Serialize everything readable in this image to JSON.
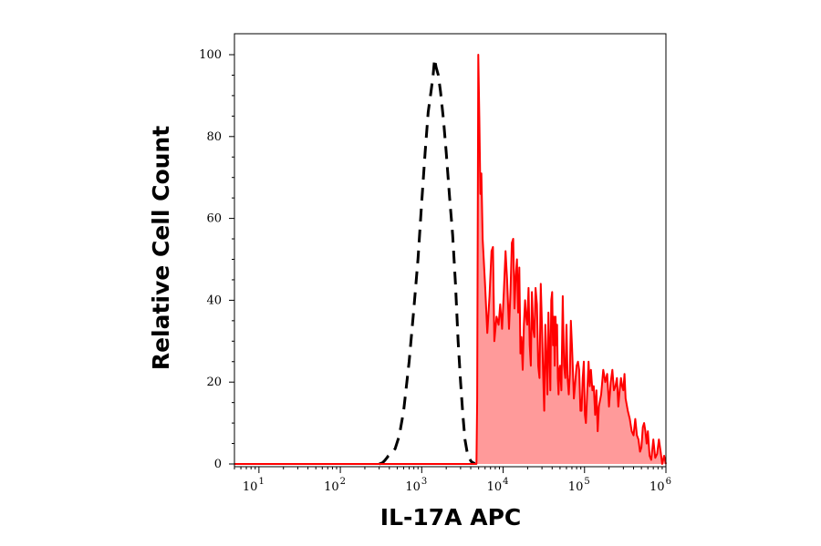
{
  "chart_data": {
    "type": "area",
    "xlabel": "IL-17A APC",
    "ylabel": "Relative Cell Count",
    "x_scale": "log",
    "xlim": [
      5,
      1000000
    ],
    "ylim": [
      0,
      100
    ],
    "x_ticks": [
      {
        "value": 10,
        "base": "10",
        "exp": "1"
      },
      {
        "value": 100,
        "base": "10",
        "exp": "2"
      },
      {
        "value": 1000,
        "base": "10",
        "exp": "3"
      },
      {
        "value": 10000,
        "base": "10",
        "exp": "4"
      },
      {
        "value": 100000,
        "base": "10",
        "exp": "5"
      },
      {
        "value": 1000000,
        "base": "10",
        "exp": "6"
      }
    ],
    "y_ticks": [
      0,
      20,
      40,
      60,
      80,
      100
    ],
    "series": [
      {
        "style": "dashed",
        "color": "#000000",
        "points": [
          [
            300,
            0
          ],
          [
            330,
            0.3
          ],
          [
            350,
            0.8
          ],
          [
            370,
            1.4
          ],
          [
            390,
            2.0
          ],
          [
            420,
            2.5
          ],
          [
            470,
            3.7
          ],
          [
            530,
            6.9
          ],
          [
            600,
            13.0
          ],
          [
            700,
            25.0
          ],
          [
            800,
            38.0
          ],
          [
            900,
            50.0
          ],
          [
            1000,
            64.0
          ],
          [
            1100,
            76.0
          ],
          [
            1200,
            86.0
          ],
          [
            1300,
            91.0
          ],
          [
            1380,
            95.0
          ],
          [
            1440,
            99.0
          ],
          [
            1500,
            97.0
          ],
          [
            1600,
            95.0
          ],
          [
            1700,
            91.0
          ],
          [
            1850,
            84.0
          ],
          [
            2000,
            76.0
          ],
          [
            2200,
            65.0
          ],
          [
            2400,
            56.0
          ],
          [
            2600,
            44.0
          ],
          [
            2800,
            30.0
          ],
          [
            3000,
            20.0
          ],
          [
            3200,
            12.0
          ],
          [
            3400,
            6.0
          ],
          [
            3600,
            3.0
          ],
          [
            3800,
            1.5
          ],
          [
            4100,
            0.5
          ],
          [
            4500,
            0.1
          ]
        ]
      },
      {
        "style": "filled",
        "color": "#ff0000",
        "fill": "#ff9a9a",
        "points": [
          [
            5,
            0
          ],
          [
            200,
            0
          ],
          [
            4700,
            0
          ],
          [
            4800,
            16
          ],
          [
            4950,
            100
          ],
          [
            5100,
            84
          ],
          [
            5250,
            66
          ],
          [
            5400,
            71
          ],
          [
            5600,
            55
          ],
          [
            6000,
            44
          ],
          [
            6400,
            32
          ],
          [
            6800,
            41
          ],
          [
            7200,
            52
          ],
          [
            7500,
            53
          ],
          [
            7800,
            30
          ],
          [
            8300,
            36
          ],
          [
            8800,
            34
          ],
          [
            9200,
            39
          ],
          [
            9700,
            33
          ],
          [
            10200,
            42
          ],
          [
            10700,
            52
          ],
          [
            11200,
            45
          ],
          [
            11800,
            33
          ],
          [
            12300,
            42
          ],
          [
            12800,
            54
          ],
          [
            13300,
            55
          ],
          [
            13800,
            38
          ],
          [
            14300,
            46
          ],
          [
            14800,
            50
          ],
          [
            15300,
            37
          ],
          [
            15800,
            48
          ],
          [
            16300,
            27
          ],
          [
            16800,
            31
          ],
          [
            17400,
            23
          ],
          [
            18000,
            34
          ],
          [
            18600,
            40
          ],
          [
            19200,
            36
          ],
          [
            19800,
            34
          ],
          [
            20500,
            43
          ],
          [
            21200,
            29
          ],
          [
            21900,
            24
          ],
          [
            22600,
            42
          ],
          [
            23400,
            33
          ],
          [
            24200,
            31
          ],
          [
            25000,
            43
          ],
          [
            26000,
            39
          ],
          [
            27000,
            24
          ],
          [
            28000,
            21
          ],
          [
            29000,
            44
          ],
          [
            30000,
            34
          ],
          [
            31000,
            22
          ],
          [
            32000,
            13
          ],
          [
            33000,
            34
          ],
          [
            34000,
            25
          ],
          [
            35000,
            17
          ],
          [
            36000,
            37
          ],
          [
            37000,
            28
          ],
          [
            38000,
            18
          ],
          [
            39000,
            40
          ],
          [
            40000,
            42
          ],
          [
            41000,
            29
          ],
          [
            42000,
            36
          ],
          [
            43000,
            24
          ],
          [
            44000,
            36
          ],
          [
            45000,
            29
          ],
          [
            46000,
            34
          ],
          [
            47000,
            21
          ],
          [
            48000,
            17
          ],
          [
            49000,
            23
          ],
          [
            50000,
            24
          ],
          [
            52000,
            18
          ],
          [
            54000,
            41
          ],
          [
            56000,
            24
          ],
          [
            58000,
            21
          ],
          [
            60000,
            34
          ],
          [
            62000,
            21
          ],
          [
            64000,
            17
          ],
          [
            66000,
            22
          ],
          [
            68000,
            35
          ],
          [
            70000,
            29
          ],
          [
            72000,
            23
          ],
          [
            74000,
            16
          ],
          [
            77000,
            20
          ],
          [
            80000,
            24
          ],
          [
            83000,
            25
          ],
          [
            86000,
            23
          ],
          [
            89000,
            13
          ],
          [
            92000,
            13
          ],
          [
            95000,
            21
          ],
          [
            98000,
            25
          ],
          [
            101000,
            12
          ],
          [
            104000,
            10
          ],
          [
            108000,
            18
          ],
          [
            112000,
            25
          ],
          [
            116000,
            19
          ],
          [
            120000,
            23
          ],
          [
            125000,
            18
          ],
          [
            130000,
            19
          ],
          [
            135000,
            12
          ],
          [
            140000,
            18
          ],
          [
            145000,
            8
          ],
          [
            150000,
            14
          ],
          [
            160000,
            17
          ],
          [
            170000,
            23
          ],
          [
            180000,
            20
          ],
          [
            190000,
            22
          ],
          [
            200000,
            14
          ],
          [
            210000,
            20
          ],
          [
            220000,
            23
          ],
          [
            230000,
            18
          ],
          [
            240000,
            19
          ],
          [
            250000,
            21
          ],
          [
            260000,
            14
          ],
          [
            270000,
            18
          ],
          [
            280000,
            21
          ],
          [
            290000,
            19
          ],
          [
            300000,
            18
          ],
          [
            310000,
            22
          ],
          [
            320000,
            16
          ],
          [
            340000,
            13
          ],
          [
            360000,
            11
          ],
          [
            380000,
            8
          ],
          [
            400000,
            7
          ],
          [
            420000,
            11
          ],
          [
            440000,
            7
          ],
          [
            460000,
            6
          ],
          [
            480000,
            3
          ],
          [
            500000,
            4
          ],
          [
            520000,
            9
          ],
          [
            540000,
            10
          ],
          [
            560000,
            8
          ],
          [
            580000,
            5
          ],
          [
            600000,
            8
          ],
          [
            630000,
            2
          ],
          [
            660000,
            1
          ],
          [
            700000,
            6
          ],
          [
            740000,
            1.5
          ],
          [
            780000,
            2.5
          ],
          [
            820000,
            6
          ],
          [
            860000,
            3
          ],
          [
            900000,
            0
          ],
          [
            950000,
            2
          ],
          [
            1000000,
            0
          ]
        ]
      }
    ]
  }
}
